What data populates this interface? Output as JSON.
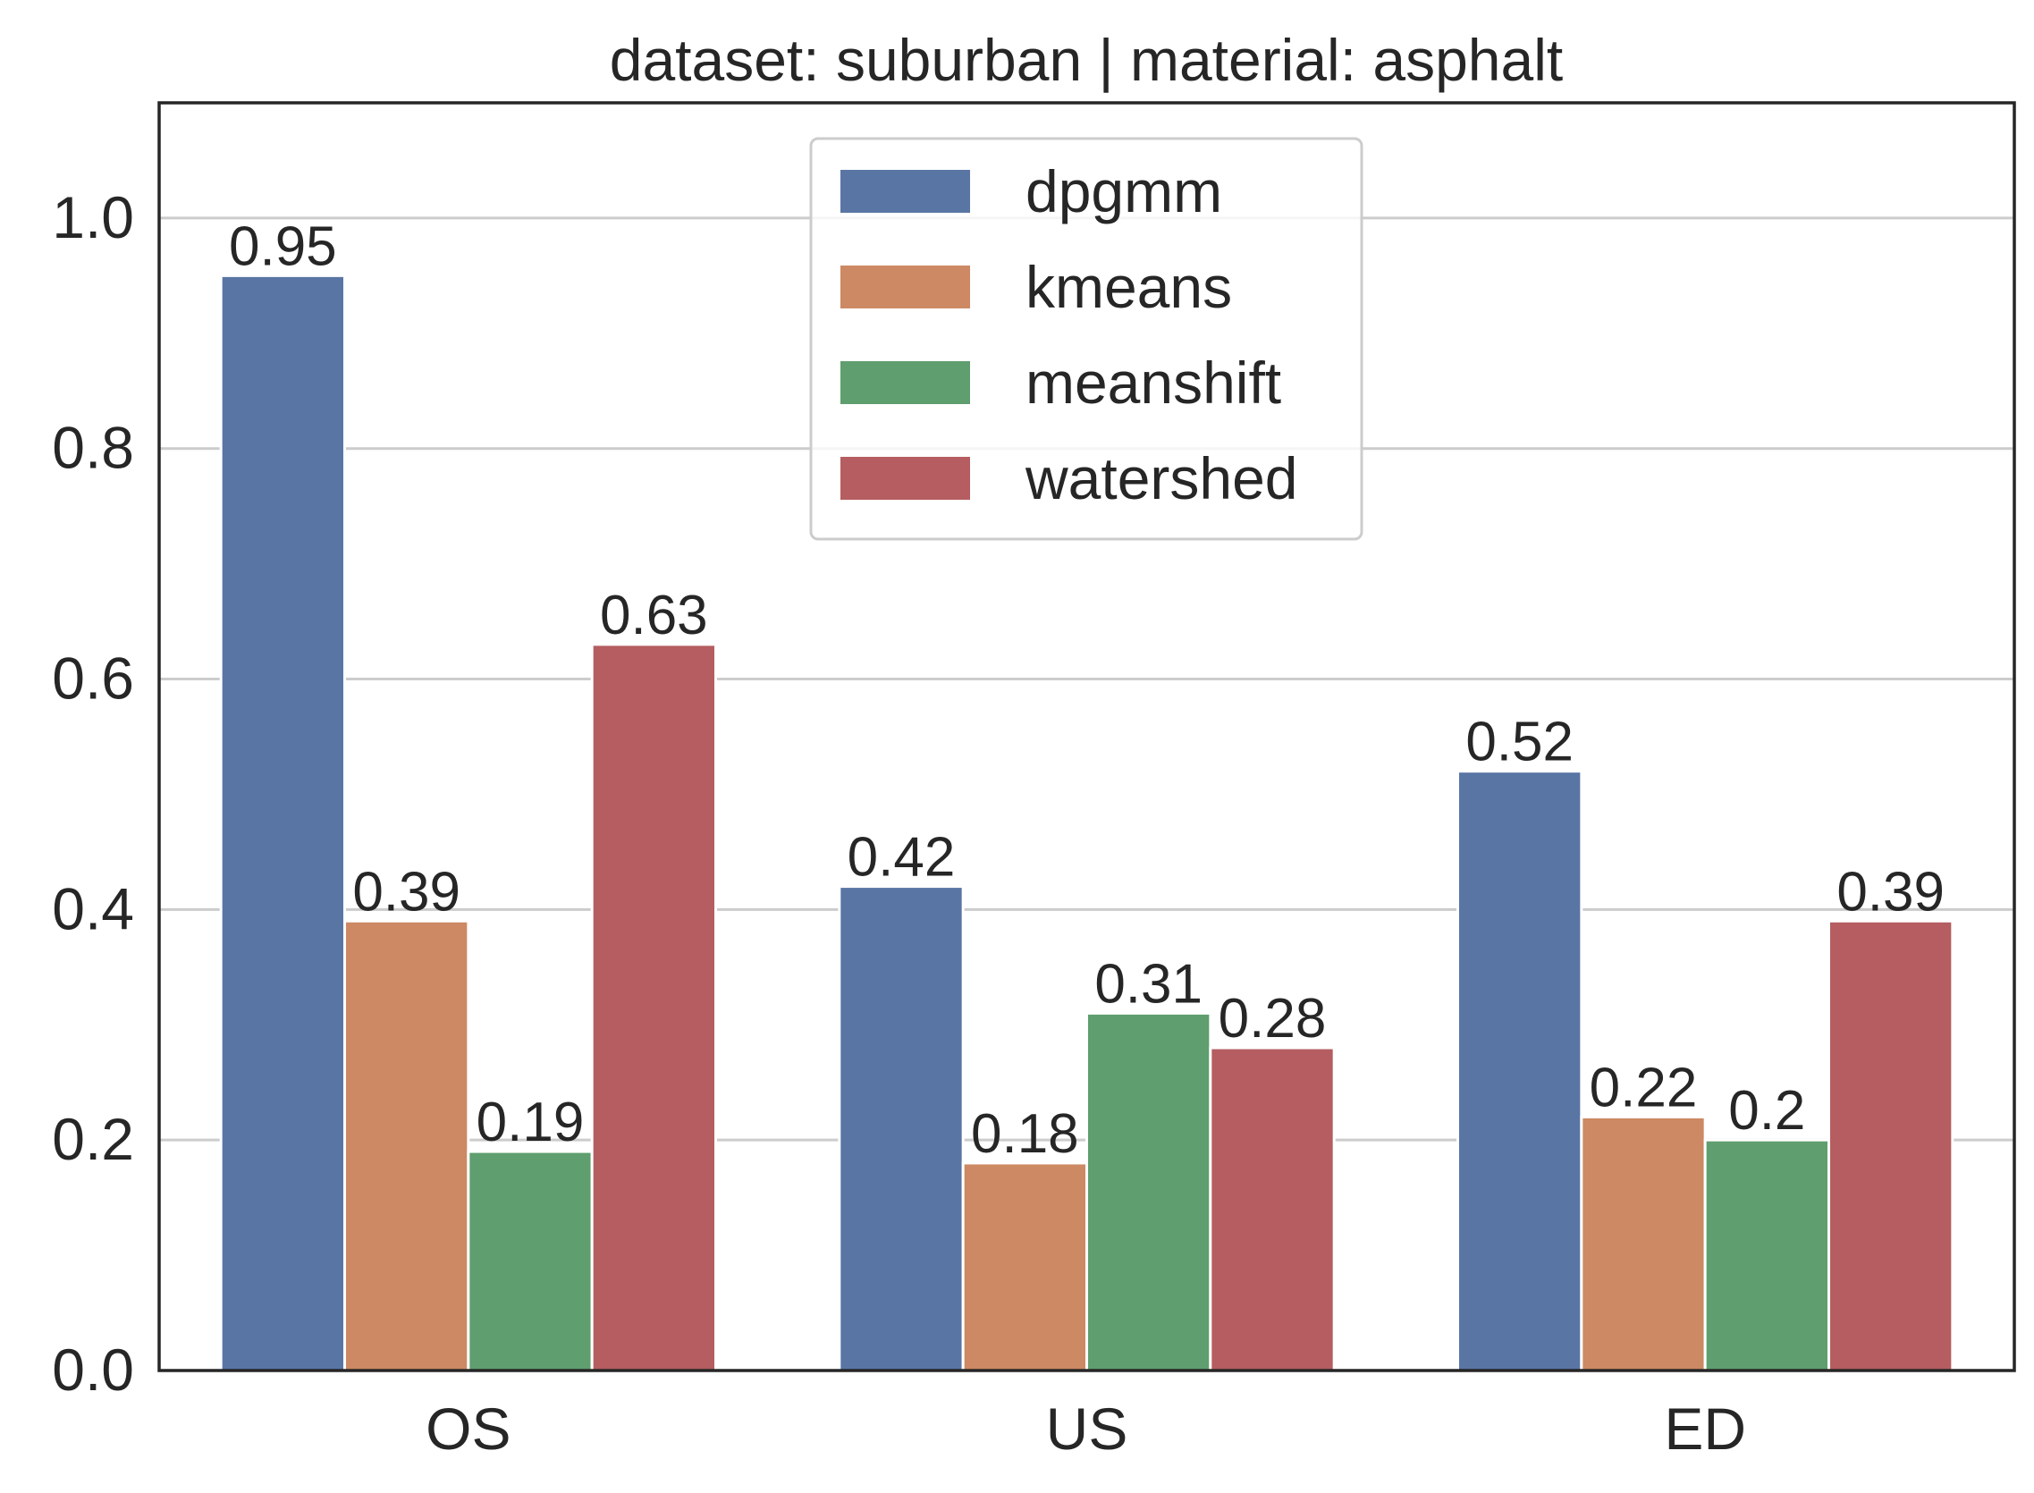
{
  "chart_data": {
    "type": "bar",
    "title": "dataset: suburban | material: asphalt",
    "xlabel": "",
    "ylabel": "",
    "categories": [
      "OS",
      "US",
      "ED"
    ],
    "ylim": [
      0,
      1.1
    ],
    "yticks": [
      "0.0",
      "0.2",
      "0.4",
      "0.6",
      "0.8",
      "1.0"
    ],
    "grid": "horizontal",
    "legend_position": "top-center",
    "series": [
      {
        "name": "dpgmm",
        "color": "#5975a4",
        "values": [
          0.95,
          0.42,
          0.52
        ],
        "labels": [
          "0.95",
          "0.42",
          "0.52"
        ]
      },
      {
        "name": "kmeans",
        "color": "#cc8963",
        "values": [
          0.39,
          0.18,
          0.22
        ],
        "labels": [
          "0.39",
          "0.18",
          "0.22"
        ]
      },
      {
        "name": "meanshift",
        "color": "#5f9e6e",
        "values": [
          0.19,
          0.31,
          0.2
        ],
        "labels": [
          "0.19",
          "0.31",
          "0.2"
        ]
      },
      {
        "name": "watershed",
        "color": "#b55d60",
        "values": [
          0.63,
          0.28,
          0.39
        ],
        "labels": [
          "0.63",
          "0.28",
          "0.39"
        ]
      }
    ]
  }
}
